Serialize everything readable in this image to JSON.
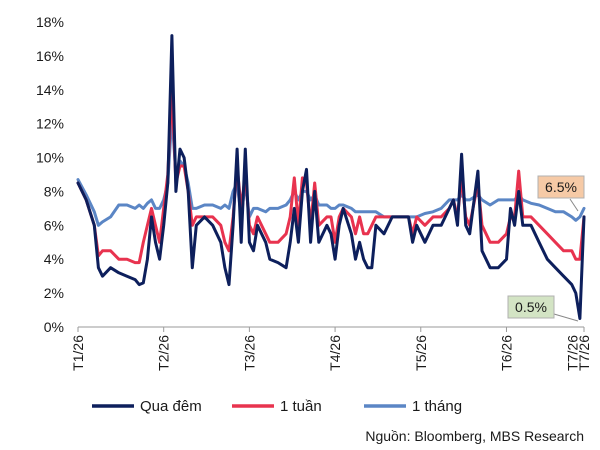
{
  "chart_data": {
    "type": "line",
    "x": [
      "T1/26",
      "",
      "",
      "",
      "",
      "",
      "",
      "",
      "",
      "",
      "",
      "",
      "",
      "",
      "",
      "",
      "",
      "",
      "",
      "",
      "",
      "",
      "",
      "",
      "",
      "",
      "",
      "",
      "",
      "",
      "",
      "",
      "",
      "",
      "",
      "",
      "",
      "",
      "",
      "",
      "",
      "",
      "",
      "",
      "",
      "",
      "",
      "",
      "",
      "",
      "",
      "",
      "",
      "",
      "",
      "",
      "",
      "",
      "",
      "",
      "",
      "",
      "",
      "",
      "",
      "",
      "",
      "",
      "",
      "",
      "",
      "",
      "",
      "",
      "",
      "",
      "",
      "",
      "",
      "",
      "",
      "",
      "",
      "",
      "",
      "",
      "",
      "",
      "",
      "",
      "",
      "",
      "",
      "",
      "",
      "",
      "",
      "",
      "",
      "",
      "T7/26"
    ],
    "x_tick_labels": [
      "T1/26",
      "T2/26",
      "T3/26",
      "T4/26",
      "T5/26",
      "T6/26",
      "T7/26",
      "T7/26"
    ],
    "ylim": [
      0,
      18
    ],
    "y_ticks": [
      "0%",
      "2%",
      "4%",
      "6%",
      "8%",
      "10%",
      "12%",
      "14%",
      "16%",
      "18%"
    ],
    "series": [
      {
        "name": "Qua đêm",
        "color": "#0d1f5c",
        "points": [
          [
            0,
            8.5
          ],
          [
            2,
            7.5
          ],
          [
            4,
            6.0
          ],
          [
            5,
            3.5
          ],
          [
            6,
            3.0
          ],
          [
            8,
            3.5
          ],
          [
            10,
            3.2
          ],
          [
            12,
            3.0
          ],
          [
            14,
            2.8
          ],
          [
            15,
            2.5
          ],
          [
            16,
            2.6
          ],
          [
            17,
            4.0
          ],
          [
            18,
            6.5
          ],
          [
            19,
            5.0
          ],
          [
            20,
            4.0
          ],
          [
            21,
            6.0
          ],
          [
            22,
            8.5
          ],
          [
            23,
            17.2
          ],
          [
            24,
            8.0
          ],
          [
            25,
            10.5
          ],
          [
            26,
            10.0
          ],
          [
            27,
            8.0
          ],
          [
            28,
            3.5
          ],
          [
            29,
            6.0
          ],
          [
            31,
            6.5
          ],
          [
            33,
            6.0
          ],
          [
            35,
            5.0
          ],
          [
            36,
            3.5
          ],
          [
            37,
            2.5
          ],
          [
            38,
            6.0
          ],
          [
            39,
            10.5
          ],
          [
            40,
            5.0
          ],
          [
            41,
            10.5
          ],
          [
            42,
            5.0
          ],
          [
            43,
            4.5
          ],
          [
            44,
            6.0
          ],
          [
            46,
            5.0
          ],
          [
            47,
            4.0
          ],
          [
            49,
            3.8
          ],
          [
            51,
            3.5
          ],
          [
            52,
            5.0
          ],
          [
            53,
            7.0
          ],
          [
            54,
            5.0
          ],
          [
            55,
            8.0
          ],
          [
            56,
            9.3
          ],
          [
            57,
            5.0
          ],
          [
            58,
            8.0
          ],
          [
            59,
            5.0
          ],
          [
            61,
            6.0
          ],
          [
            62,
            5.5
          ],
          [
            63,
            4.0
          ],
          [
            64,
            6.0
          ],
          [
            65,
            7.0
          ],
          [
            67,
            5.5
          ],
          [
            68,
            4.0
          ],
          [
            69,
            5.0
          ],
          [
            70,
            4.0
          ],
          [
            71,
            3.5
          ],
          [
            72,
            3.5
          ],
          [
            73,
            6.0
          ],
          [
            75,
            5.5
          ],
          [
            77,
            6.5
          ],
          [
            79,
            6.5
          ],
          [
            81,
            6.5
          ],
          [
            82,
            5.0
          ],
          [
            83,
            6.0
          ],
          [
            85,
            5.0
          ],
          [
            87,
            6.0
          ],
          [
            89,
            6.0
          ],
          [
            91,
            7.0
          ],
          [
            92,
            7.5
          ],
          [
            93,
            6.0
          ],
          [
            94,
            10.2
          ],
          [
            95,
            6.0
          ],
          [
            96,
            5.5
          ],
          [
            98,
            9.2
          ],
          [
            99,
            4.5
          ],
          [
            101,
            3.5
          ],
          [
            103,
            3.5
          ],
          [
            105,
            4.0
          ],
          [
            106,
            7.0
          ],
          [
            107,
            6.0
          ],
          [
            108,
            8.0
          ],
          [
            109,
            6.0
          ],
          [
            111,
            6.0
          ],
          [
            113,
            5.0
          ],
          [
            115,
            4.0
          ],
          [
            117,
            3.5
          ],
          [
            119,
            3.0
          ],
          [
            121,
            2.5
          ],
          [
            122,
            2.0
          ],
          [
            123,
            0.5
          ],
          [
            124,
            6.5
          ]
        ]
      },
      {
        "name": "1 tuần",
        "color": "#e8334f",
        "points": [
          [
            0,
            8.5
          ],
          [
            2,
            7.5
          ],
          [
            4,
            6.0
          ],
          [
            5,
            4.2
          ],
          [
            6,
            4.5
          ],
          [
            8,
            4.5
          ],
          [
            10,
            4.0
          ],
          [
            12,
            4.0
          ],
          [
            14,
            3.8
          ],
          [
            15,
            3.8
          ],
          [
            16,
            5.0
          ],
          [
            17,
            6.0
          ],
          [
            18,
            7.0
          ],
          [
            19,
            6.0
          ],
          [
            20,
            5.0
          ],
          [
            21,
            7.0
          ],
          [
            22,
            9.0
          ],
          [
            23,
            14.0
          ],
          [
            24,
            8.5
          ],
          [
            25,
            9.5
          ],
          [
            26,
            9.5
          ],
          [
            27,
            8.0
          ],
          [
            28,
            6.0
          ],
          [
            29,
            6.5
          ],
          [
            31,
            6.5
          ],
          [
            33,
            6.5
          ],
          [
            35,
            6.0
          ],
          [
            36,
            5.0
          ],
          [
            37,
            4.5
          ],
          [
            38,
            6.5
          ],
          [
            39,
            9.5
          ],
          [
            40,
            7.0
          ],
          [
            41,
            9.0
          ],
          [
            42,
            6.0
          ],
          [
            43,
            5.5
          ],
          [
            44,
            6.5
          ],
          [
            46,
            5.5
          ],
          [
            47,
            5.0
          ],
          [
            49,
            5.0
          ],
          [
            51,
            5.5
          ],
          [
            52,
            6.5
          ],
          [
            53,
            8.8
          ],
          [
            54,
            6.0
          ],
          [
            55,
            8.8
          ],
          [
            56,
            8.5
          ],
          [
            57,
            6.0
          ],
          [
            58,
            8.5
          ],
          [
            59,
            6.0
          ],
          [
            61,
            6.5
          ],
          [
            62,
            6.5
          ],
          [
            63,
            5.0
          ],
          [
            64,
            6.5
          ],
          [
            65,
            7.0
          ],
          [
            67,
            6.5
          ],
          [
            68,
            5.5
          ],
          [
            69,
            6.5
          ],
          [
            70,
            5.5
          ],
          [
            71,
            5.5
          ],
          [
            72,
            6.0
          ],
          [
            73,
            6.5
          ],
          [
            75,
            6.5
          ],
          [
            77,
            6.5
          ],
          [
            79,
            6.5
          ],
          [
            81,
            6.5
          ],
          [
            82,
            5.5
          ],
          [
            83,
            6.5
          ],
          [
            85,
            6.0
          ],
          [
            87,
            6.5
          ],
          [
            89,
            6.5
          ],
          [
            91,
            7.0
          ],
          [
            92,
            7.5
          ],
          [
            93,
            6.5
          ],
          [
            94,
            8.8
          ],
          [
            95,
            6.5
          ],
          [
            96,
            6.0
          ],
          [
            98,
            8.5
          ],
          [
            99,
            6.0
          ],
          [
            101,
            5.0
          ],
          [
            103,
            5.0
          ],
          [
            105,
            5.5
          ],
          [
            106,
            6.5
          ],
          [
            107,
            6.5
          ],
          [
            108,
            9.2
          ],
          [
            109,
            6.5
          ],
          [
            111,
            6.5
          ],
          [
            113,
            6.0
          ],
          [
            115,
            5.5
          ],
          [
            117,
            5.0
          ],
          [
            119,
            4.5
          ],
          [
            121,
            4.5
          ],
          [
            122,
            4.0
          ],
          [
            123,
            4.0
          ],
          [
            124,
            6.5
          ]
        ]
      },
      {
        "name": "1 tháng",
        "color": "#5b86c5",
        "points": [
          [
            0,
            8.7
          ],
          [
            2,
            7.8
          ],
          [
            4,
            6.8
          ],
          [
            5,
            6.0
          ],
          [
            6,
            6.2
          ],
          [
            8,
            6.5
          ],
          [
            10,
            7.2
          ],
          [
            12,
            7.2
          ],
          [
            14,
            7.0
          ],
          [
            15,
            7.2
          ],
          [
            16,
            7.0
          ],
          [
            17,
            7.3
          ],
          [
            18,
            7.5
          ],
          [
            19,
            7.0
          ],
          [
            20,
            7.0
          ],
          [
            21,
            7.5
          ],
          [
            22,
            8.5
          ],
          [
            23,
            12.5
          ],
          [
            24,
            9.0
          ],
          [
            25,
            9.8
          ],
          [
            26,
            9.5
          ],
          [
            27,
            8.5
          ],
          [
            28,
            7.0
          ],
          [
            29,
            7.0
          ],
          [
            31,
            7.2
          ],
          [
            33,
            7.2
          ],
          [
            35,
            7.0
          ],
          [
            36,
            7.2
          ],
          [
            37,
            7.0
          ],
          [
            38,
            8.0
          ],
          [
            39,
            8.5
          ],
          [
            40,
            6.5
          ],
          [
            41,
            8.5
          ],
          [
            42,
            6.5
          ],
          [
            43,
            7.0
          ],
          [
            44,
            7.0
          ],
          [
            46,
            6.8
          ],
          [
            47,
            7.0
          ],
          [
            49,
            7.0
          ],
          [
            51,
            7.2
          ],
          [
            52,
            7.5
          ],
          [
            53,
            8.0
          ],
          [
            54,
            7.5
          ],
          [
            55,
            8.0
          ],
          [
            56,
            8.0
          ],
          [
            57,
            7.5
          ],
          [
            58,
            7.8
          ],
          [
            59,
            7.2
          ],
          [
            61,
            7.2
          ],
          [
            62,
            7.0
          ],
          [
            63,
            7.0
          ],
          [
            64,
            7.2
          ],
          [
            65,
            7.2
          ],
          [
            67,
            7.0
          ],
          [
            68,
            6.8
          ],
          [
            69,
            6.8
          ],
          [
            70,
            6.8
          ],
          [
            71,
            6.8
          ],
          [
            72,
            6.8
          ],
          [
            73,
            6.8
          ],
          [
            75,
            6.5
          ],
          [
            77,
            6.5
          ],
          [
            79,
            6.5
          ],
          [
            81,
            6.5
          ],
          [
            82,
            6.5
          ],
          [
            83,
            6.5
          ],
          [
            85,
            6.7
          ],
          [
            87,
            6.8
          ],
          [
            89,
            7.0
          ],
          [
            91,
            7.5
          ],
          [
            92,
            7.5
          ],
          [
            93,
            7.5
          ],
          [
            94,
            7.8
          ],
          [
            95,
            7.5
          ],
          [
            96,
            7.5
          ],
          [
            98,
            7.8
          ],
          [
            99,
            7.5
          ],
          [
            101,
            7.2
          ],
          [
            103,
            7.5
          ],
          [
            105,
            7.5
          ],
          [
            106,
            7.5
          ],
          [
            107,
            7.5
          ],
          [
            108,
            7.8
          ],
          [
            109,
            7.5
          ],
          [
            111,
            7.3
          ],
          [
            113,
            7.2
          ],
          [
            115,
            7.0
          ],
          [
            117,
            6.8
          ],
          [
            119,
            6.8
          ],
          [
            121,
            6.5
          ],
          [
            122,
            6.3
          ],
          [
            123,
            6.5
          ],
          [
            124,
            7.0
          ]
        ]
      }
    ],
    "annotations": [
      {
        "text": "6.5%",
        "series": "1 tuần",
        "bg": "#f6caa6"
      },
      {
        "text": "0.5%",
        "series": "Qua đêm",
        "bg": "#d3e4c4"
      }
    ],
    "legend": {
      "placement": "bottom"
    }
  },
  "source_text": "Nguồn: Bloomberg, MBS Research"
}
